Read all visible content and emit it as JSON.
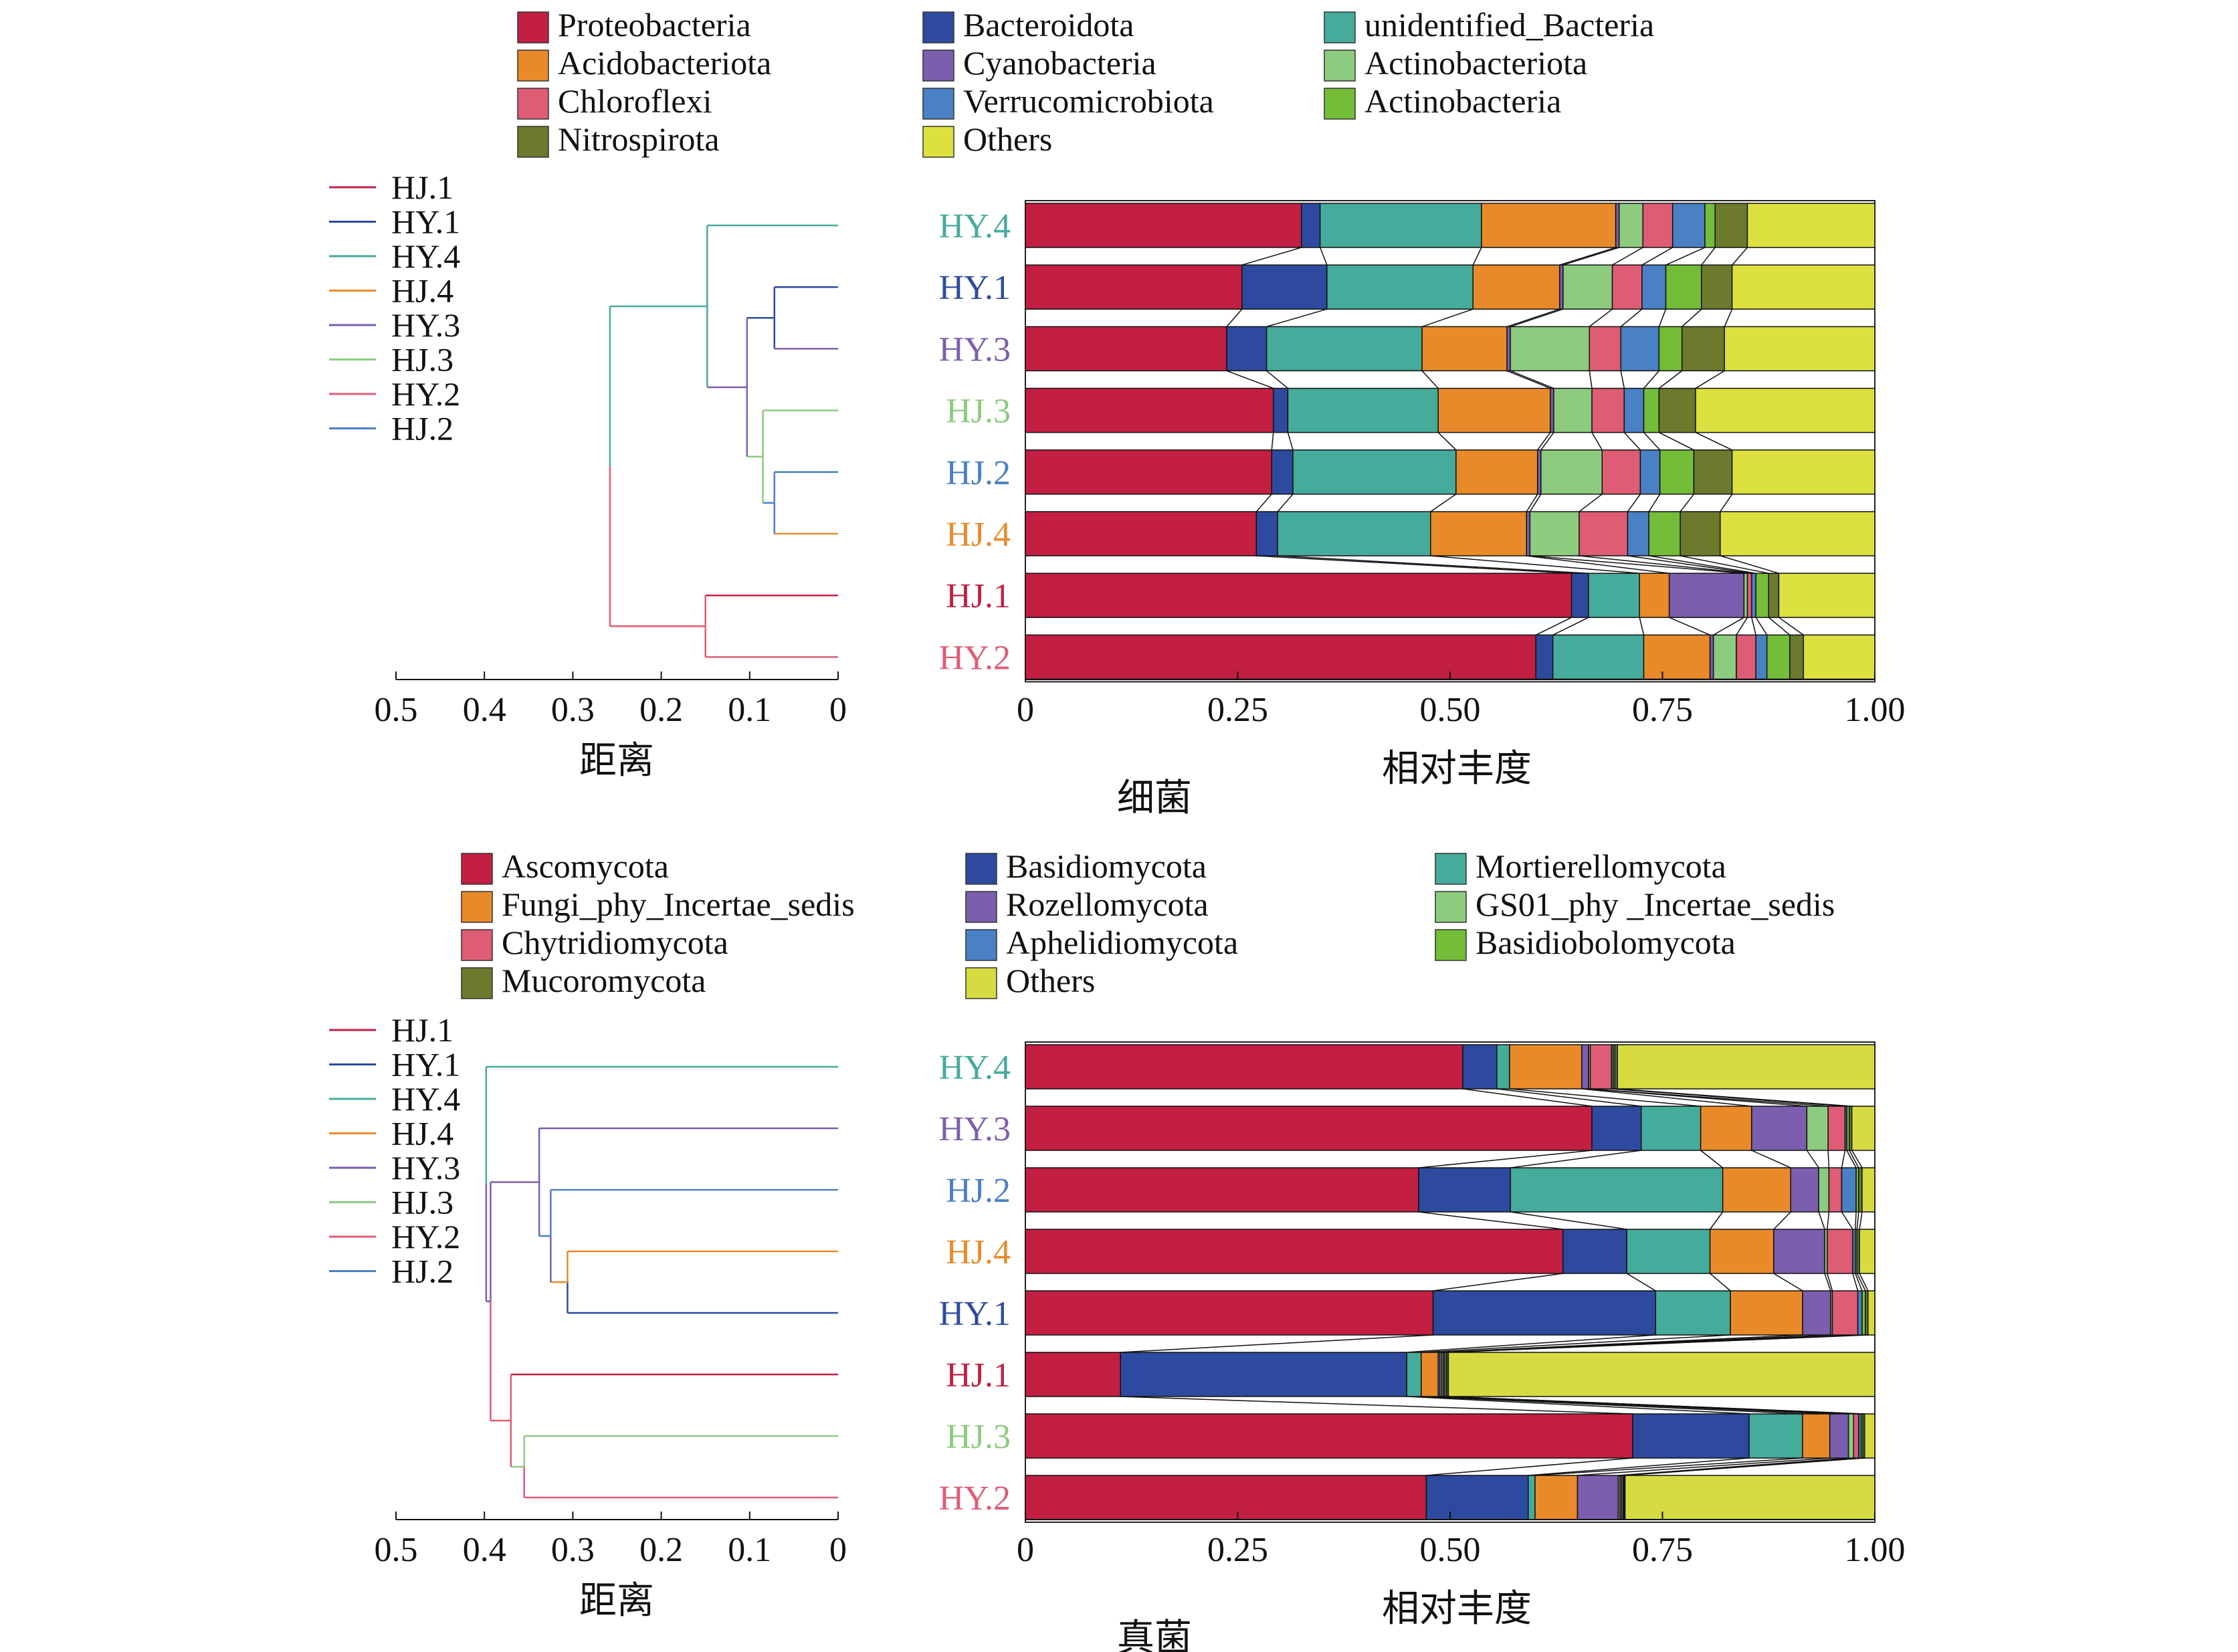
{
  "colors": {
    "Proteobacteria": "#C21F43",
    "Bacteroidota": "#2E4A9E",
    "unidentified_Bacteria": "#45AB9B",
    "Acidobacteriota": "#E98A2A",
    "Cyanobacteria": "#7B5EAD",
    "Actinobacteriota": "#8DCB7F",
    "Chloroflexi": "#DE5C74",
    "Verrucomicrobiota": "#4A80C4",
    "Actinobacteria": "#74BD38",
    "Nitrospirota": "#6B7A2C",
    "Others": "#DCE13F",
    "Ascomycota": "#C21F43",
    "Basidiomycota": "#2E4A9E",
    "Mortierellomycota": "#45AB9B",
    "Fungi_phy_Incertae_sedis": "#E98A2A",
    "Rozellomycota": "#7B5EAD",
    "GS01_phy_Incertae_sedis": "#8DCB7F",
    "Chytridiomycota": "#DE5C74",
    "Aphelidiomycota": "#4A80C4",
    "Basidiobolomycota": "#74BD38",
    "Mucoromycota": "#6B7A2C",
    "FungiOthers": "#D6DB42",
    "HJ.1": "#C21F43",
    "HY.1": "#2E4A9E",
    "HY.4": "#45AB9B",
    "HJ.4": "#E98A2A",
    "HY.3": "#7B5EAD",
    "HJ.3": "#8DCB7F",
    "HY.2": "#DE5C74",
    "HJ.2": "#4A80C4"
  },
  "chart_data": [
    {
      "type": "bar",
      "orientation": "horizontal-stacked",
      "title": "细菌",
      "xlabel": "相对丰度",
      "xlim": [
        0,
        1
      ],
      "xticks": [
        "0",
        "0.25",
        "0.50",
        "0.75",
        "1.00"
      ],
      "legend": [
        "Proteobacteria",
        "Bacteroidota",
        "unidentified_Bacteria",
        "Acidobacteriota",
        "Cyanobacteria",
        "Actinobacteriota",
        "Chloroflexi",
        "Verrucomicrobiota",
        "Actinobacteria",
        "Nitrospirota",
        "Others"
      ],
      "stack_order": [
        "Proteobacteria",
        "Bacteroidota",
        "unidentified_Bacteria",
        "Acidobacteriota",
        "Cyanobacteria",
        "Actinobacteriota",
        "Chloroflexi",
        "Verrucomicrobiota",
        "Actinobacteria",
        "Nitrospirota",
        "Others"
      ],
      "categories": [
        "HY.4",
        "HY.1",
        "HY.3",
        "HJ.3",
        "HJ.2",
        "HJ.4",
        "HJ.1",
        "HY.2"
      ],
      "values": [
        [
          0.325,
          0.022,
          0.19,
          0.158,
          0.004,
          0.028,
          0.035,
          0.038,
          0.012,
          0.038,
          0.15
        ],
        [
          0.255,
          0.1,
          0.172,
          0.102,
          0.004,
          0.058,
          0.035,
          0.028,
          0.042,
          0.036,
          0.168
        ],
        [
          0.237,
          0.047,
          0.183,
          0.1,
          0.004,
          0.093,
          0.037,
          0.045,
          0.027,
          0.05,
          0.177
        ],
        [
          0.292,
          0.017,
          0.177,
          0.132,
          0.004,
          0.045,
          0.038,
          0.023,
          0.018,
          0.043,
          0.211
        ],
        [
          0.29,
          0.025,
          0.192,
          0.096,
          0.004,
          0.072,
          0.045,
          0.023,
          0.04,
          0.045,
          0.168
        ],
        [
          0.272,
          0.025,
          0.18,
          0.113,
          0.004,
          0.058,
          0.057,
          0.025,
          0.037,
          0.047,
          0.182
        ],
        [
          0.643,
          0.02,
          0.06,
          0.035,
          0.088,
          0.004,
          0.005,
          0.005,
          0.015,
          0.012,
          0.113
        ],
        [
          0.601,
          0.02,
          0.107,
          0.078,
          0.004,
          0.027,
          0.023,
          0.013,
          0.027,
          0.016,
          0.084
        ]
      ],
      "dendrogram": {
        "xlabel": "距离",
        "xticks": [
          "0.5",
          "0.4",
          "0.3",
          "0.2",
          "0.1",
          "0"
        ],
        "xlim": [
          0,
          0.5
        ],
        "legend": [
          "HJ.1",
          "HY.1",
          "HY.4",
          "HJ.4",
          "HY.3",
          "HJ.3",
          "HY.2",
          "HJ.2"
        ]
      }
    },
    {
      "type": "bar",
      "orientation": "horizontal-stacked",
      "title": "真菌",
      "xlabel": "相对丰度",
      "xlim": [
        0,
        1
      ],
      "xticks": [
        "0",
        "0.25",
        "0.50",
        "0.75",
        "1.00"
      ],
      "legend": [
        "Ascomycota",
        "Basidiomycota",
        "Mortierellomycota",
        "Fungi_phy_Incertae_sedis",
        "Rozellomycota",
        "GS01_phy _Incertae_sedis",
        "Chytridiomycota",
        "Aphelidiomycota",
        "Basidiobolomycota",
        "Mucoromycota",
        "Others"
      ],
      "stack_order": [
        "Ascomycota",
        "Basidiomycota",
        "Mortierellomycota",
        "Fungi_phy_Incertae_sedis",
        "Rozellomycota",
        "GS01_phy_Incertae_sedis",
        "Chytridiomycota",
        "Aphelidiomycota",
        "Basidiobolomycota",
        "Mucoromycota",
        "FungiOthers"
      ],
      "categories": [
        "HY.4",
        "HY.3",
        "HJ.2",
        "HJ.4",
        "HY.1",
        "HJ.1",
        "HJ.3",
        "HY.2"
      ],
      "values": [
        [
          0.515,
          0.04,
          0.015,
          0.085,
          0.008,
          0.002,
          0.025,
          0.002,
          0.002,
          0.003,
          0.303
        ],
        [
          0.667,
          0.058,
          0.07,
          0.06,
          0.065,
          0.025,
          0.02,
          0.002,
          0.003,
          0.003,
          0.027
        ],
        [
          0.463,
          0.108,
          0.25,
          0.08,
          0.033,
          0.012,
          0.015,
          0.017,
          0.003,
          0.004,
          0.015
        ],
        [
          0.633,
          0.075,
          0.098,
          0.075,
          0.06,
          0.003,
          0.03,
          0.003,
          0.002,
          0.003,
          0.018
        ],
        [
          0.48,
          0.262,
          0.088,
          0.085,
          0.033,
          0.002,
          0.03,
          0.005,
          0.004,
          0.003,
          0.008
        ],
        [
          0.112,
          0.337,
          0.017,
          0.02,
          0.002,
          0.002,
          0.002,
          0.002,
          0.002,
          0.002,
          0.502
        ],
        [
          0.715,
          0.137,
          0.063,
          0.032,
          0.022,
          0.006,
          0.006,
          0.003,
          0.002,
          0.002,
          0.012
        ],
        [
          0.472,
          0.12,
          0.008,
          0.05,
          0.048,
          0.002,
          0.002,
          0.002,
          0.001,
          0.001,
          0.294
        ]
      ],
      "dendrogram": {
        "xlabel": "距离",
        "xticks": [
          "0.5",
          "0.4",
          "0.3",
          "0.2",
          "0.1",
          "0"
        ],
        "xlim": [
          0,
          0.5
        ],
        "legend": [
          "HJ.1",
          "HY.1",
          "HY.4",
          "HJ.4",
          "HY.3",
          "HJ.3",
          "HY.2",
          "HJ.2"
        ]
      }
    }
  ]
}
